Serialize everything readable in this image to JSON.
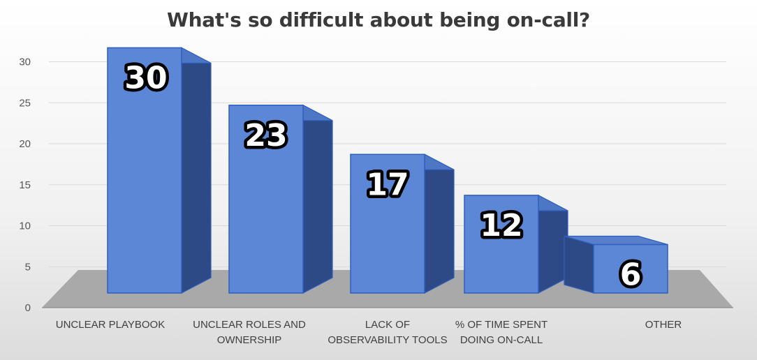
{
  "chart_data": {
    "type": "bar",
    "title": "What's so difficult about being on-call?",
    "xlabel": "",
    "ylabel": "",
    "ylim": [
      0,
      30
    ],
    "yticks": [
      "0",
      "5",
      "10",
      "15",
      "20",
      "25",
      "30"
    ],
    "categories": [
      [
        "UNCLEAR PLAYBOOK"
      ],
      [
        "UNCLEAR ROLES AND",
        "OWNERSHIP"
      ],
      [
        "LACK OF",
        "OBSERVABILITY TOOLS"
      ],
      [
        "% OF TIME SPENT",
        "DOING ON-CALL"
      ],
      [
        "OTHER"
      ]
    ],
    "values": [
      30,
      23,
      17,
      12,
      6
    ],
    "data_labels": [
      "30",
      "23",
      "17",
      "12",
      "6"
    ],
    "style": "3d-column",
    "grid": true,
    "legend": "none",
    "colors": {
      "bar_front": "#5b87d6",
      "bar_side": "#2d4a86",
      "bar_top": "#4f79c8",
      "bar_edge": "#2e5fc0",
      "floor": "#a9a9a9",
      "gridline": "#d9d9d9"
    }
  }
}
